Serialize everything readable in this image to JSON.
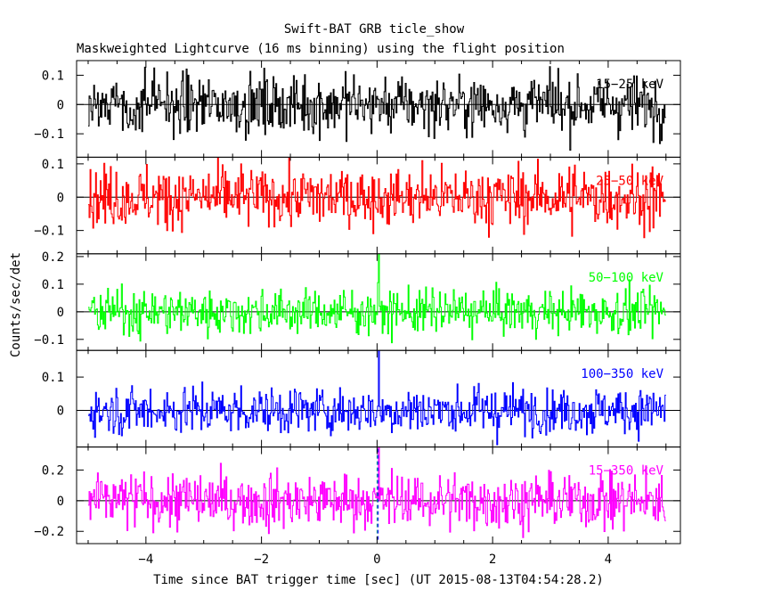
{
  "chart_data": {
    "type": "line",
    "title": "Swift-BAT GRB ticle_show",
    "subtitle": "Maskweighted Lightcurve (16 ms binning) using the flight position",
    "xlabel": "Time since BAT trigger time [sec] (UT 2015-08-13T04:54:28.2)",
    "ylabel": "Counts/sec/det",
    "xlim": [
      -5.2,
      5.25
    ],
    "x_ticks": [
      -4,
      -2,
      0,
      2,
      4
    ],
    "x_tick_labels": [
      "−4",
      "−2",
      "0",
      "2",
      "4"
    ],
    "bin_seconds": 0.016,
    "markers": [
      {
        "name": "trigger-line",
        "x": 0.0,
        "color": "#008888"
      },
      {
        "name": "burst-start-line",
        "x": 0.02,
        "color": "#0000ff"
      }
    ],
    "panels": [
      {
        "name": "15-25 keV",
        "label": "15−25 keV",
        "color": "#000000",
        "ylim": [
          -0.18,
          0.15
        ],
        "y_ticks": [
          0.1,
          0,
          -0.1
        ],
        "y_tick_labels": [
          "0.1",
          "0",
          "−0.1"
        ],
        "noise_sigma": 0.05,
        "spikes": []
      },
      {
        "name": "25-50 keV",
        "label": "25−50 keV",
        "color": "#ff0000",
        "ylim": [
          -0.17,
          0.12
        ],
        "y_ticks": [
          0.1,
          0,
          -0.1
        ],
        "y_tick_labels": [
          "0.1",
          "0",
          "−0.1"
        ],
        "noise_sigma": 0.045,
        "spikes": []
      },
      {
        "name": "50-100 keV",
        "label": "50−100 keV",
        "color": "#00ff00",
        "ylim": [
          -0.14,
          0.21
        ],
        "y_ticks": [
          0.2,
          0.1,
          0,
          -0.1
        ],
        "y_tick_labels": [
          "0.2",
          "0.1",
          "0",
          "−0.1"
        ],
        "noise_sigma": 0.04,
        "spikes": [
          {
            "t": 0.02,
            "v": 0.21
          }
        ]
      },
      {
        "name": "100-350 keV",
        "label": "100−350 keV",
        "color": "#0000ff",
        "ylim": [
          -0.11,
          0.18
        ],
        "y_ticks": [
          0.1,
          0
        ],
        "y_tick_labels": [
          "0.1",
          "0"
        ],
        "noise_sigma": 0.035,
        "spikes": [
          {
            "t": 0.02,
            "v": 0.18
          }
        ]
      },
      {
        "name": "15-350 keV",
        "label": "15−350 keV",
        "color": "#ff00ff",
        "ylim": [
          -0.28,
          0.35
        ],
        "y_ticks": [
          0.2,
          0,
          -0.2
        ],
        "y_tick_labels": [
          "0.2",
          "0",
          "−0.2"
        ],
        "noise_sigma": 0.09,
        "spikes": [
          {
            "t": 0.02,
            "v": 0.35
          }
        ]
      }
    ]
  }
}
